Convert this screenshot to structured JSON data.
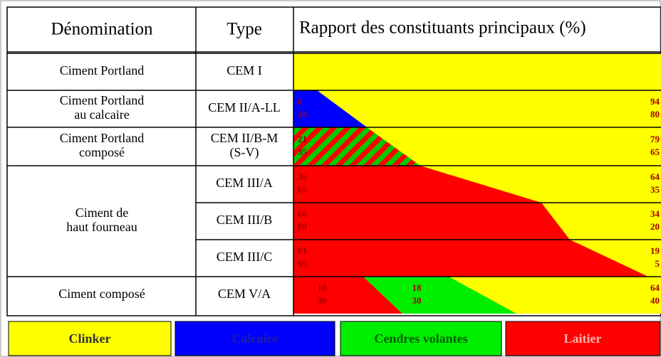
{
  "header": {
    "name": "Dénomination",
    "type": "Type",
    "ratio": "Rapport des constituants principaux (%)"
  },
  "rows": [
    {
      "name": [
        "Ciment Portland"
      ],
      "type": [
        "CEM I"
      ]
    },
    {
      "name": [
        "Ciment Portland",
        "au calcaire"
      ],
      "type": [
        "CEM II/A-LL"
      ],
      "left": [
        6,
        20
      ],
      "right": [
        94,
        80
      ]
    },
    {
      "name": [
        "Ciment Portland",
        "composé"
      ],
      "type": [
        "CEM II/B-M",
        "(S-V)"
      ],
      "left": [
        21,
        35
      ],
      "right": [
        79,
        65
      ]
    },
    {
      "name": [
        "Ciment de",
        "haut fourneau"
      ],
      "type": [
        "CEM III/A"
      ],
      "left": [
        36,
        65
      ],
      "right": [
        64,
        35
      ]
    },
    {
      "type": [
        "CEM III/B"
      ],
      "left": [
        66,
        80
      ],
      "right": [
        34,
        20
      ]
    },
    {
      "type": [
        "CEM III/C"
      ],
      "left": [
        81,
        95
      ],
      "right": [
        19,
        5
      ]
    },
    {
      "name": [
        "Ciment composé"
      ],
      "type": [
        "CEM V/A"
      ],
      "left": [
        18,
        30
      ],
      "middle": [
        18,
        30
      ],
      "right": [
        64,
        40
      ]
    }
  ],
  "legend": [
    "Clinker",
    "Calcaire",
    "Cendres volantes",
    "Laitier"
  ]
}
